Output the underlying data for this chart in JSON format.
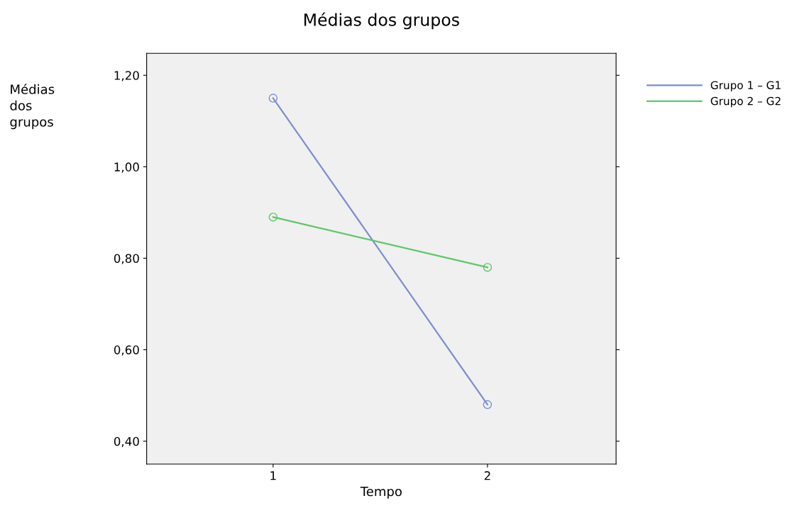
{
  "chart_data": {
    "type": "line",
    "title": "Médias dos grupos",
    "xlabel": "Tempo",
    "ylabel": "Médias\ndos\ngrupos",
    "categories": [
      "1",
      "2"
    ],
    "series": [
      {
        "name": "Grupo 1 – G1",
        "color": "#7b8cd0",
        "values": [
          1.15,
          0.48
        ]
      },
      {
        "name": "Grupo 2 – G2",
        "color": "#5cc86a",
        "values": [
          0.89,
          0.78
        ]
      }
    ],
    "ylim": [
      0.35,
      1.248
    ],
    "yticks": [
      {
        "value": 0.4,
        "label": "0,40"
      },
      {
        "value": 0.6,
        "label": "0,60"
      },
      {
        "value": 0.8,
        "label": "0,80"
      },
      {
        "value": 1.0,
        "label": "1,00"
      },
      {
        "value": 1.2,
        "label": "1,20"
      }
    ],
    "grid": false,
    "legend": "top right",
    "marker": "circle",
    "line_style": "solid"
  }
}
